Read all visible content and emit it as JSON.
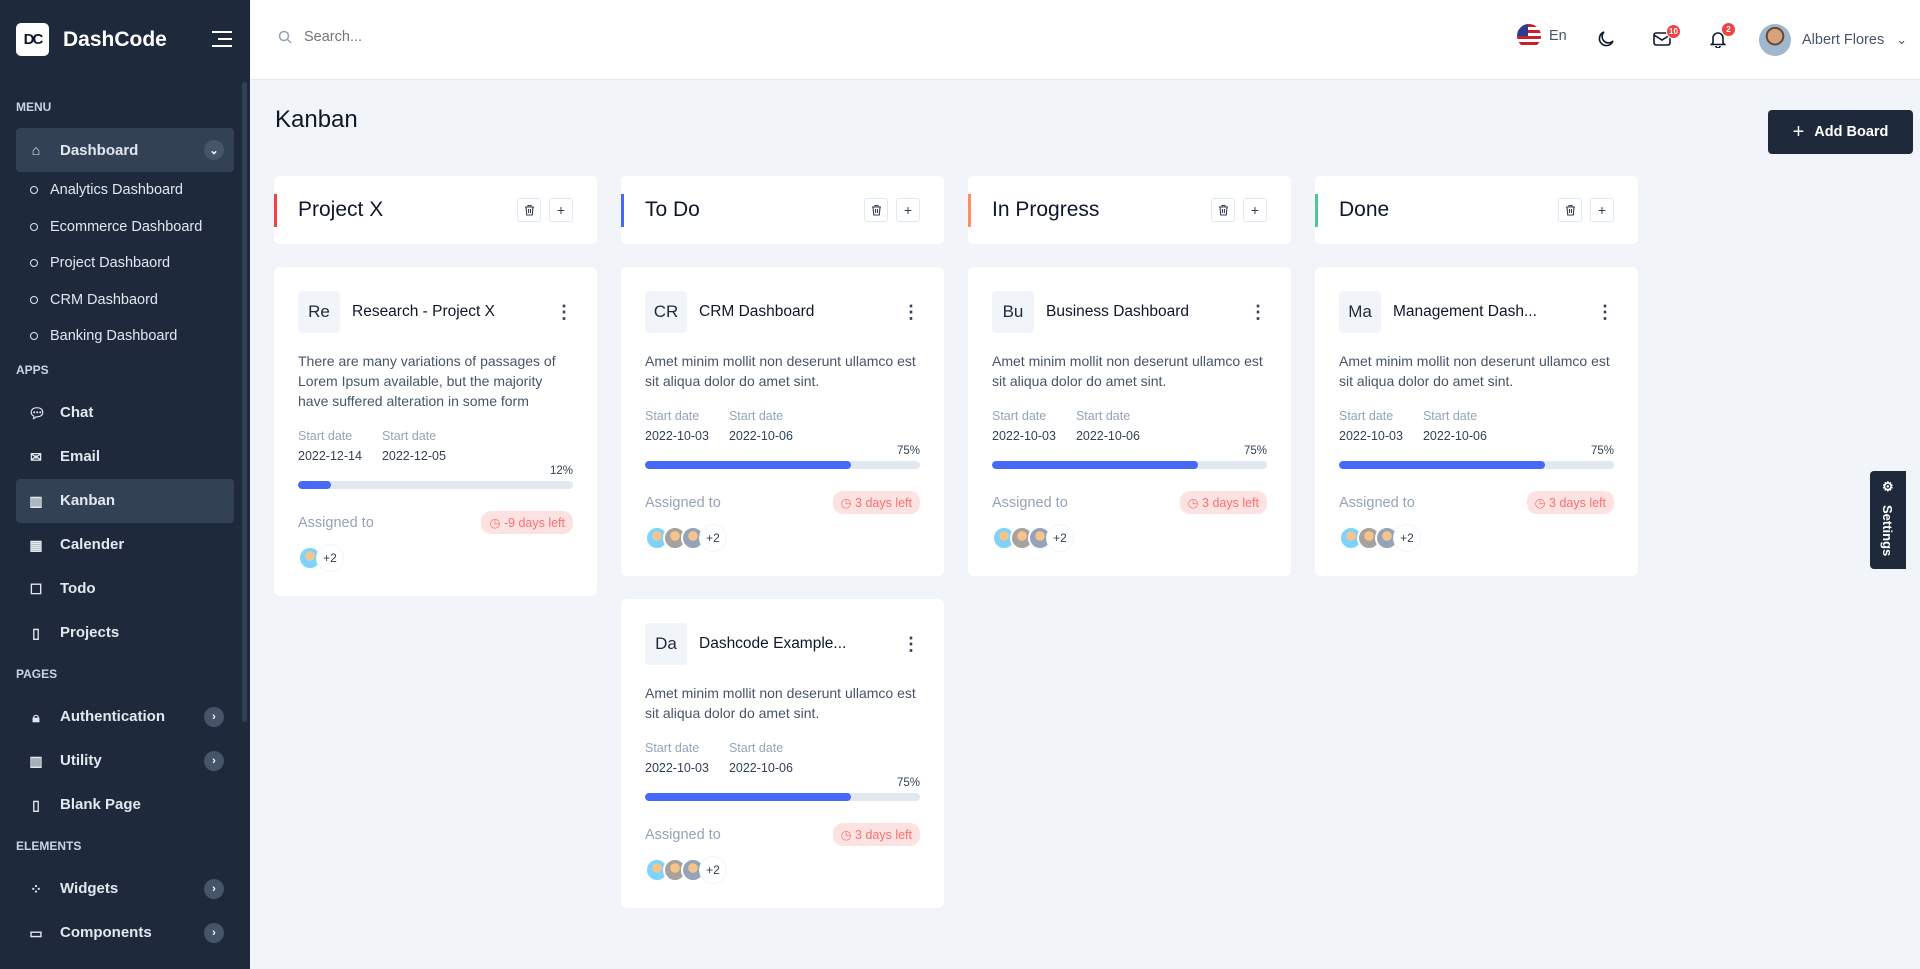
{
  "app": {
    "name": "DashCode",
    "logo": "DC"
  },
  "sidebar": {
    "sections": {
      "menu": "MENU",
      "apps": "APPS",
      "pages": "PAGES",
      "elements": "ELEMENTS"
    },
    "dashboard": "Dashboard",
    "sub": [
      "Analytics Dashboard",
      "Ecommerce Dashboard",
      "Project Dashbaord",
      "CRM Dashbaord",
      "Banking Dashboard"
    ],
    "apps": [
      {
        "label": "Chat",
        "icon": "chat-icon"
      },
      {
        "label": "Email",
        "icon": "mail-icon"
      },
      {
        "label": "Kanban",
        "icon": "kanban-icon",
        "active": true
      },
      {
        "label": "Calender",
        "icon": "calendar-icon"
      },
      {
        "label": "Todo",
        "icon": "clipboard-icon"
      },
      {
        "label": "Projects",
        "icon": "document-icon"
      }
    ],
    "pages": [
      {
        "label": "Authentication",
        "icon": "lock-icon"
      },
      {
        "label": "Utility",
        "icon": "columns-icon"
      },
      {
        "label": "Blank Page",
        "icon": "document-icon"
      }
    ],
    "elements": [
      {
        "label": "Widgets",
        "icon": "widgets-icon"
      },
      {
        "label": "Components",
        "icon": "box-icon"
      }
    ]
  },
  "header": {
    "search_placeholder": "Search...",
    "lang": "En",
    "mail_count": "10",
    "notif_count": "2",
    "user": "Albert Flores"
  },
  "page": {
    "title": "Kanban",
    "add_board": "Add Board"
  },
  "columns": [
    {
      "title": "Project X",
      "color": "#ef4444",
      "cards": [
        {
          "abbr": "Re",
          "name": "Research - Project X",
          "desc": "There are many variations of passages of Lorem Ipsum available, but the majority have suffered alteration in some form",
          "start_label": "Start date",
          "start": "2022-12-14",
          "end_label": "Start date",
          "end": "2022-12-05",
          "progress": 12,
          "progress_label": "12%",
          "assigned": "Assigned to",
          "due": "-9 days left",
          "more": "+2",
          "avatars": 1
        }
      ]
    },
    {
      "title": "To Do",
      "color": "#4669fa",
      "cards": [
        {
          "abbr": "CR",
          "name": "CRM Dashboard",
          "desc": "Amet minim mollit non deserunt ullamco est sit aliqua dolor do amet sint.",
          "start_label": "Start date",
          "start": "2022-10-03",
          "end_label": "Start date",
          "end": "2022-10-06",
          "progress": 75,
          "progress_label": "75%",
          "assigned": "Assigned to",
          "due": "3 days left",
          "more": "+2",
          "avatars": 3
        },
        {
          "abbr": "Da",
          "name": "Dashcode Example...",
          "desc": "Amet minim mollit non deserunt ullamco est sit aliqua dolor do amet sint.",
          "start_label": "Start date",
          "start": "2022-10-03",
          "end_label": "Start date",
          "end": "2022-10-06",
          "progress": 75,
          "progress_label": "75%",
          "assigned": "Assigned to",
          "due": "3 days left",
          "more": "+2",
          "avatars": 3
        }
      ]
    },
    {
      "title": "In Progress",
      "color": "#fb8f65",
      "cards": [
        {
          "abbr": "Bu",
          "name": "Business Dashboard",
          "desc": "Amet minim mollit non deserunt ullamco est sit aliqua dolor do amet sint.",
          "start_label": "Start date",
          "start": "2022-10-03",
          "end_label": "Start date",
          "end": "2022-10-06",
          "progress": 75,
          "progress_label": "75%",
          "assigned": "Assigned to",
          "due": "3 days left",
          "more": "+2",
          "avatars": 3
        }
      ]
    },
    {
      "title": "Done",
      "color": "#50c793",
      "cards": [
        {
          "abbr": "Ma",
          "name": "Management Dash...",
          "desc": "Amet minim mollit non deserunt ullamco est sit aliqua dolor do amet sint.",
          "start_label": "Start date",
          "start": "2022-10-03",
          "end_label": "Start date",
          "end": "2022-10-06",
          "progress": 75,
          "progress_label": "75%",
          "assigned": "Assigned to",
          "due": "3 days left",
          "more": "+2",
          "avatars": 3
        }
      ]
    }
  ],
  "settings": "Settings"
}
